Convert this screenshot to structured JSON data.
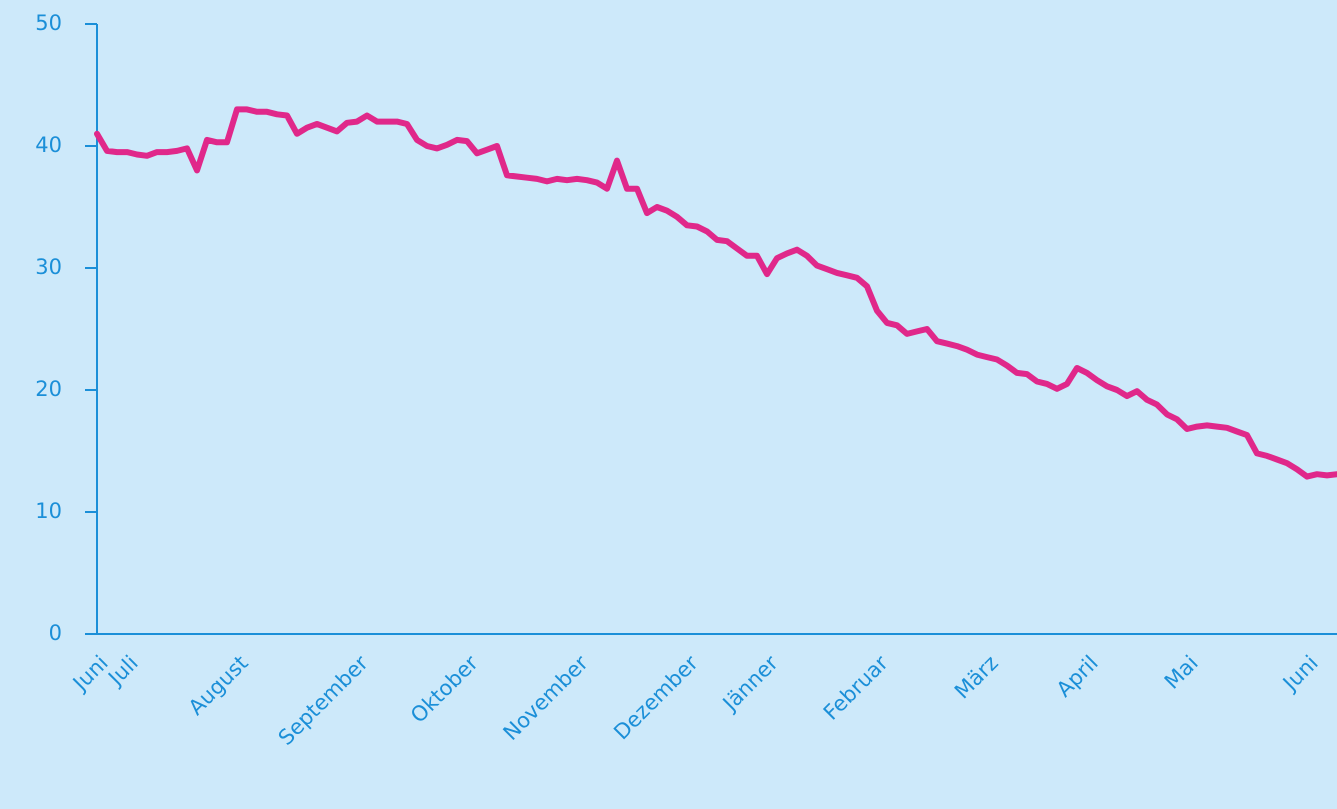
{
  "chart_data": {
    "type": "line",
    "categories": [
      "Juni",
      null,
      null,
      "Juli",
      null,
      null,
      null,
      null,
      null,
      null,
      null,
      null,
      null,
      null,
      "August",
      null,
      null,
      null,
      null,
      null,
      null,
      null,
      null,
      null,
      null,
      null,
      "September",
      null,
      null,
      null,
      null,
      null,
      null,
      null,
      null,
      null,
      null,
      "Oktober",
      null,
      null,
      null,
      null,
      null,
      null,
      null,
      null,
      null,
      null,
      "November",
      null,
      null,
      null,
      null,
      null,
      null,
      null,
      null,
      null,
      null,
      "Dezember",
      null,
      null,
      null,
      null,
      null,
      null,
      null,
      "Jänner",
      null,
      null,
      null,
      null,
      null,
      null,
      null,
      null,
      null,
      null,
      "Februar",
      null,
      null,
      null,
      null,
      null,
      null,
      null,
      null,
      null,
      null,
      "März",
      null,
      null,
      null,
      null,
      null,
      null,
      null,
      null,
      null,
      "April",
      null,
      null,
      null,
      null,
      null,
      null,
      null,
      null,
      null,
      "Mai",
      null,
      null,
      null,
      null,
      null,
      null,
      null,
      null,
      null,
      null,
      null,
      "Juni",
      null,
      null,
      null
    ],
    "series": [
      {
        "color": "#e0288a",
        "values": [
          41,
          39.6,
          39.5,
          39.5,
          39.3,
          39.2,
          39.5,
          39.5,
          39.6,
          39.8,
          38,
          40.5,
          40.3,
          40.3,
          43,
          43,
          42.8,
          42.8,
          42.6,
          42.5,
          41,
          41.5,
          41.8,
          41.5,
          41.2,
          41.9,
          42,
          42.5,
          42,
          42,
          42,
          41.8,
          40.5,
          40,
          39.8,
          40.1,
          40.5,
          40.4,
          39.4,
          39.7,
          40,
          37.6,
          37.5,
          37.4,
          37.3,
          37.1,
          37.3,
          37.2,
          37.3,
          37.2,
          37,
          36.5,
          38.8,
          36.5,
          36.5,
          34.5,
          35,
          34.7,
          34.2,
          33.5,
          33.4,
          33,
          32.3,
          32.2,
          31.6,
          31,
          31,
          29.5,
          30.8,
          31.2,
          31.5,
          31,
          30.2,
          29.9,
          29.6,
          29.4,
          29.2,
          28.5,
          26.5,
          25.5,
          25.3,
          24.6,
          24.8,
          25,
          24,
          23.8,
          23.6,
          23.3,
          22.9,
          22.7,
          22.5,
          22,
          21.4,
          21.3,
          20.7,
          20.5,
          20.1,
          20.5,
          21.8,
          21.4,
          20.8,
          20.3,
          20,
          19.5,
          19.9,
          19.2,
          18.8,
          18,
          17.6,
          16.8,
          17,
          17.1,
          17,
          16.9,
          16.6,
          16.3,
          14.8,
          14.6,
          14.3,
          14,
          13.5,
          12.9,
          13.1,
          13,
          13.1
        ]
      }
    ],
    "ylim": [
      0,
      50
    ],
    "yticks": [
      0,
      10,
      20,
      30,
      40,
      50
    ]
  }
}
